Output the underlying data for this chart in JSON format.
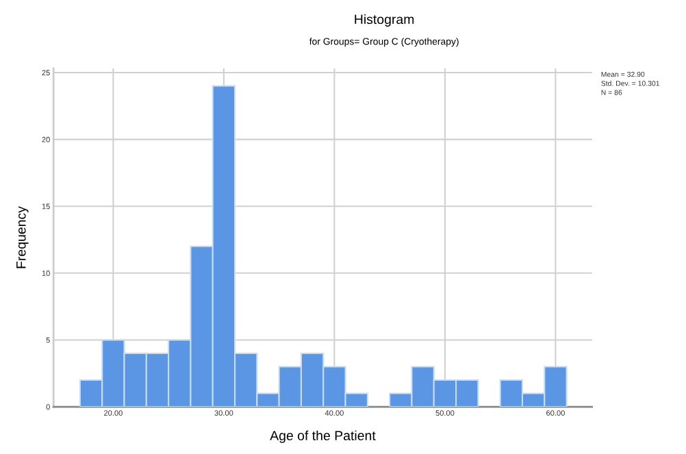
{
  "chart_data": {
    "type": "histogram",
    "title": "Histogram",
    "subtitle": "for Groups= Group C (Cryotherapy)",
    "xlabel": "Age of the Patient",
    "ylabel": "Frequency",
    "bins": [
      17,
      19,
      21,
      23,
      25,
      27,
      29,
      31,
      33,
      35,
      37,
      39,
      41,
      43,
      45,
      47,
      49,
      51,
      53,
      55,
      57,
      59,
      61
    ],
    "values": [
      2,
      5,
      4,
      4,
      5,
      12,
      24,
      4,
      1,
      3,
      4,
      3,
      1,
      0,
      1,
      3,
      2,
      2,
      0,
      2,
      1,
      3
    ],
    "color": "#5a96e3",
    "xlim": [
      14.6,
      63.3
    ],
    "xticks": [
      {
        "value": 20,
        "label": "20.00"
      },
      {
        "value": 30,
        "label": "30.00"
      },
      {
        "value": 40,
        "label": "40.00"
      },
      {
        "value": 50,
        "label": "50.00"
      },
      {
        "value": 60,
        "label": "60.00"
      }
    ],
    "ylim": [
      0,
      25.3
    ],
    "yticks": [
      0,
      5,
      10,
      15,
      20,
      25
    ],
    "grid": true,
    "annotations": [
      "Mean = 32.90",
      "Std. Dev. = 10.301",
      "N = 86"
    ]
  }
}
